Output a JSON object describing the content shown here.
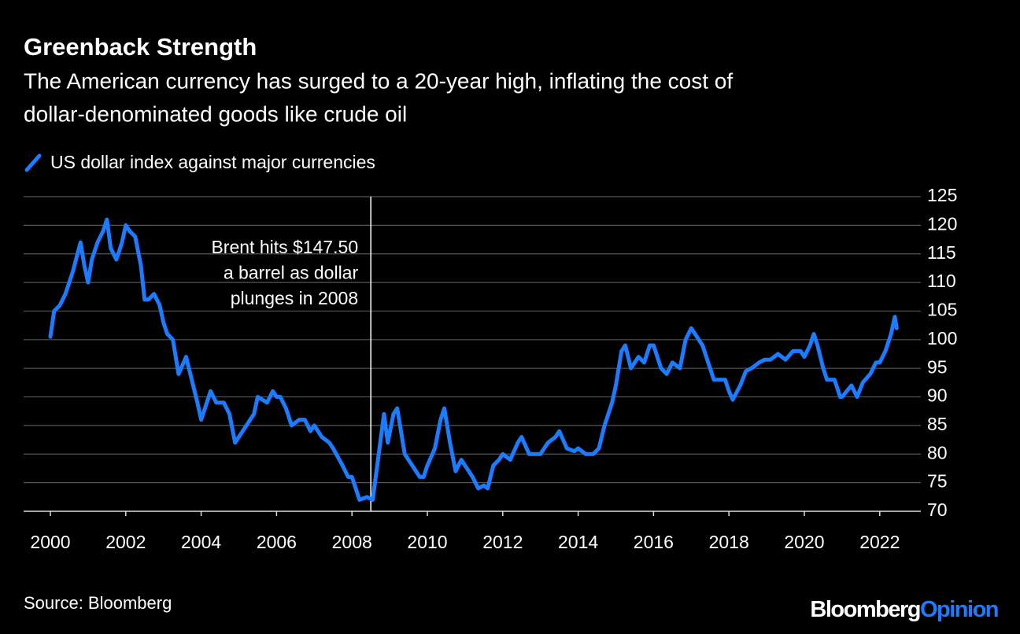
{
  "chart_data": {
    "type": "line",
    "title": "Greenback Strength",
    "subtitle": [
      "The American currency has surged to a 20-year high, inflating the cost of",
      "dollar-denominated goods like crude oil"
    ],
    "series": [
      {
        "name": "US dollar index against major currencies",
        "color": "#1b7cff",
        "x": [
          2000.0,
          2000.1,
          2000.25,
          2000.4,
          2000.6,
          2000.8,
          2000.9,
          2001.0,
          2001.1,
          2001.25,
          2001.4,
          2001.5,
          2001.6,
          2001.75,
          2001.9,
          2002.0,
          2002.1,
          2002.25,
          2002.4,
          2002.5,
          2002.6,
          2002.75,
          2002.9,
          2003.0,
          2003.1,
          2003.25,
          2003.4,
          2003.6,
          2003.75,
          2003.9,
          2004.0,
          2004.1,
          2004.25,
          2004.4,
          2004.6,
          2004.75,
          2004.9,
          2005.0,
          2005.2,
          2005.4,
          2005.5,
          2005.75,
          2005.9,
          2006.0,
          2006.1,
          2006.25,
          2006.4,
          2006.6,
          2006.75,
          2006.9,
          2007.0,
          2007.2,
          2007.4,
          2007.5,
          2007.75,
          2007.9,
          2008.0,
          2008.2,
          2008.4,
          2008.55,
          2008.65,
          2008.75,
          2008.85,
          2008.95,
          2009.1,
          2009.2,
          2009.3,
          2009.4,
          2009.6,
          2009.8,
          2009.9,
          2010.0,
          2010.2,
          2010.35,
          2010.45,
          2010.6,
          2010.75,
          2010.9,
          2011.0,
          2011.2,
          2011.35,
          2011.5,
          2011.6,
          2011.75,
          2011.9,
          2012.0,
          2012.2,
          2012.4,
          2012.5,
          2012.7,
          2012.9,
          2013.0,
          2013.2,
          2013.4,
          2013.5,
          2013.7,
          2013.9,
          2014.0,
          2014.2,
          2014.4,
          2014.55,
          2014.7,
          2014.9,
          2015.0,
          2015.15,
          2015.25,
          2015.4,
          2015.6,
          2015.75,
          2015.9,
          2016.0,
          2016.2,
          2016.35,
          2016.5,
          2016.7,
          2016.85,
          2017.0,
          2017.1,
          2017.3,
          2017.45,
          2017.6,
          2017.75,
          2017.9,
          2018.0,
          2018.1,
          2018.3,
          2018.45,
          2018.6,
          2018.8,
          2018.95,
          2019.1,
          2019.3,
          2019.5,
          2019.7,
          2019.9,
          2020.0,
          2020.15,
          2020.25,
          2020.35,
          2020.5,
          2020.6,
          2020.8,
          2020.95,
          2021.0,
          2021.25,
          2021.4,
          2021.55,
          2021.75,
          2021.9,
          2022.0,
          2022.15,
          2022.3,
          2022.4,
          2022.45
        ],
        "values": [
          100.5,
          105,
          106,
          108,
          112,
          117,
          113,
          110,
          114,
          117,
          119,
          121,
          116,
          114,
          117,
          120,
          119,
          118,
          113,
          107,
          107,
          108,
          106,
          103,
          101,
          100,
          94,
          97,
          93,
          89,
          86,
          88,
          91,
          89,
          89,
          87,
          82,
          83,
          85,
          87,
          90,
          89,
          91,
          90,
          90,
          88,
          85,
          86,
          86,
          84,
          85,
          83,
          82,
          81,
          78,
          76,
          76,
          72,
          72.5,
          72,
          77,
          82,
          87,
          82,
          87,
          88,
          84,
          80,
          78,
          76,
          76,
          78,
          81,
          86,
          88,
          82,
          77,
          79,
          78,
          76,
          74,
          74.5,
          74,
          78,
          79,
          80,
          79,
          82,
          83,
          80,
          80,
          80,
          82,
          83,
          84,
          81,
          80.5,
          81,
          80,
          80,
          81,
          85,
          89,
          92,
          98,
          99,
          95,
          97,
          96,
          99,
          99,
          95,
          94,
          96,
          95,
          100,
          102,
          101,
          99,
          96,
          93,
          93,
          93,
          91,
          89.5,
          92,
          94.5,
          95,
          96,
          96.5,
          96.5,
          97.5,
          96.5,
          98,
          98,
          97,
          99,
          101,
          99,
          95,
          93,
          93,
          90,
          90,
          92,
          90,
          92.5,
          94,
          96,
          96,
          98,
          101,
          104,
          102
        ]
      }
    ],
    "xlim": [
      1999.29,
      2023.09
    ],
    "xticks": [
      2000,
      2002,
      2004,
      2006,
      2008,
      2010,
      2012,
      2014,
      2016,
      2018,
      2020,
      2022
    ],
    "ylim": [
      70,
      125
    ],
    "yticks": [
      70,
      75,
      80,
      85,
      90,
      95,
      100,
      105,
      110,
      115,
      120,
      125
    ],
    "grid": true,
    "annotation": {
      "x": 2008.5,
      "lines": [
        "Brent hits $147.50",
        "a barrel as dollar",
        "plunges in 2008"
      ]
    },
    "source": "Source: Bloomberg",
    "brand": [
      "Bloomberg",
      "Opinion"
    ]
  }
}
